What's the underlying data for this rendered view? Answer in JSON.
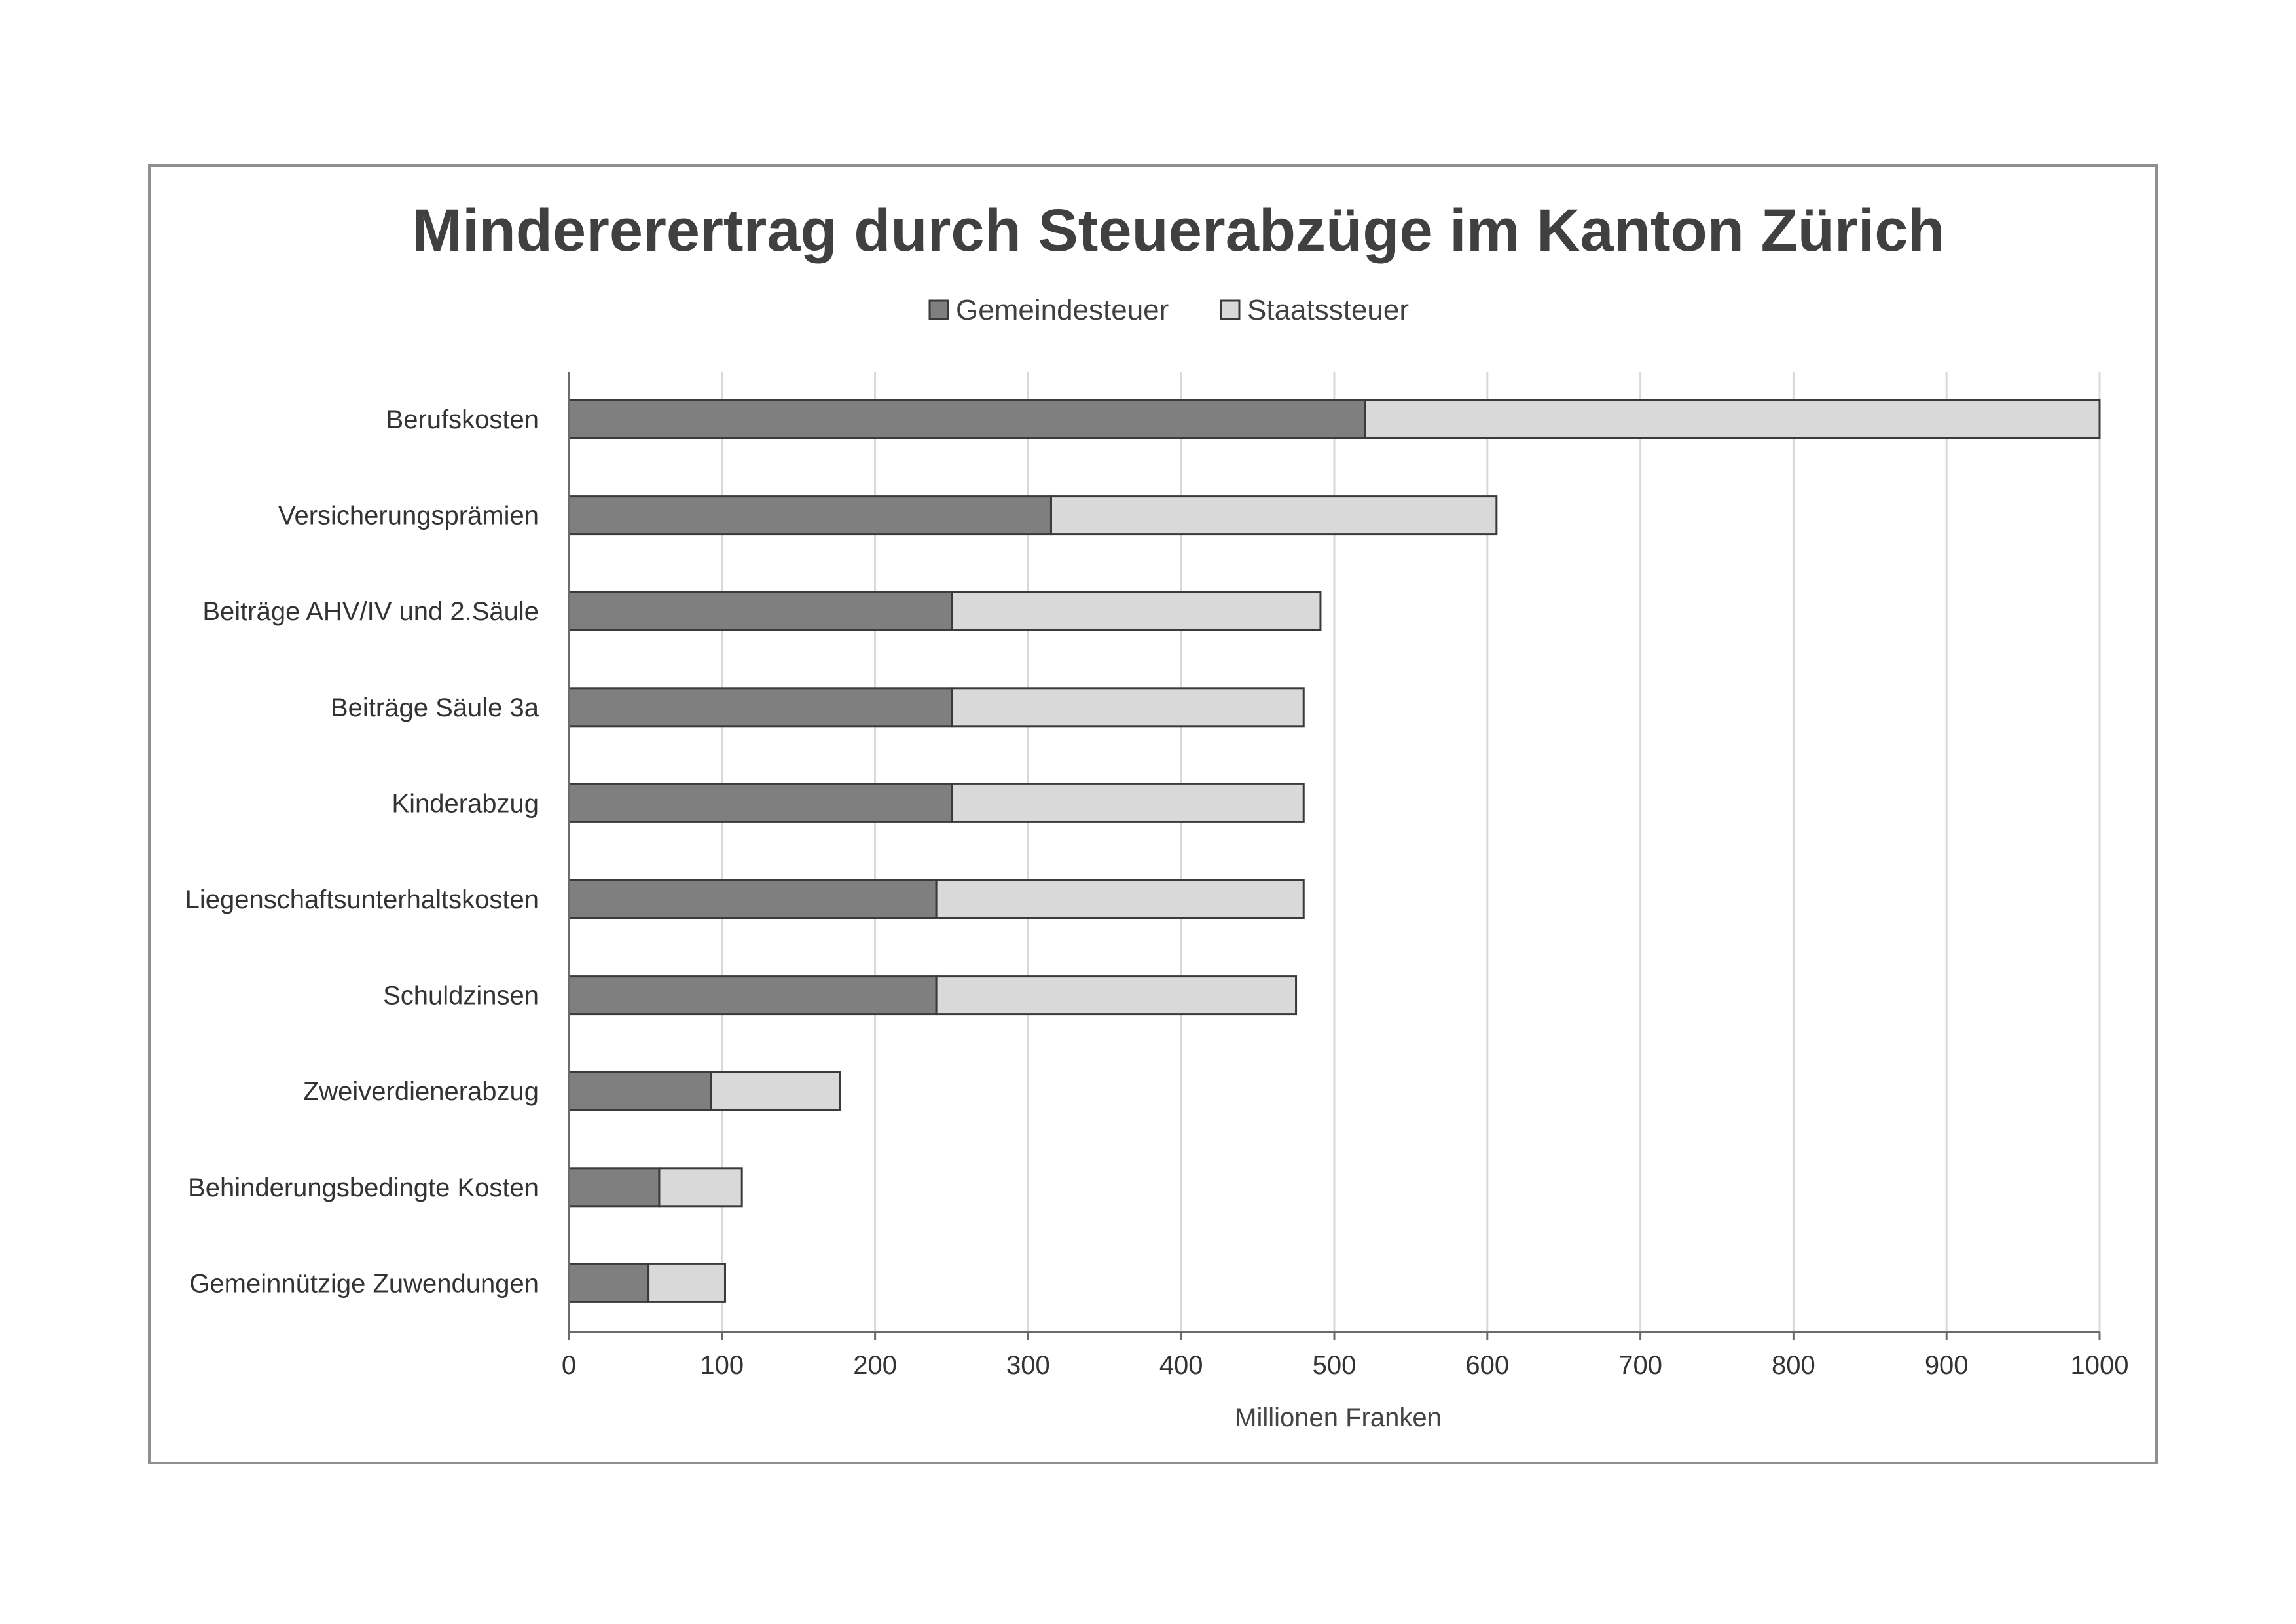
{
  "chart_data": {
    "type": "bar",
    "orientation": "horizontal",
    "stacked": true,
    "title": "Mindererertrag durch Steuerabzüge im Kanton Zürich",
    "xlabel": "Millionen Franken",
    "ylabel": "",
    "xlim": [
      0,
      1000
    ],
    "xticks": [
      0,
      100,
      200,
      300,
      400,
      500,
      600,
      700,
      800,
      900,
      1000
    ],
    "grid": true,
    "legend_position": "top",
    "categories": [
      "Berufskosten",
      "Versicherungsprämien",
      "Beiträge AHV/IV und 2.Säule",
      "Beiträge Säule 3a",
      "Kinderabzug",
      "Liegenschaftsunterhaltskosten",
      "Schuldzinsen",
      "Zweiverdienerabzug",
      "Behinderungsbedingte Kosten",
      "Gemeinnützige Zuwendungen"
    ],
    "series": [
      {
        "name": "Gemeindesteuer",
        "color": "#7f7f7f",
        "values": [
          520,
          315,
          250,
          250,
          250,
          240,
          240,
          93,
          59,
          52
        ]
      },
      {
        "name": "Staatssteuer",
        "color": "#d9d9d9",
        "values": [
          480,
          291,
          241,
          230,
          230,
          240,
          235,
          84,
          54,
          50
        ]
      }
    ]
  }
}
